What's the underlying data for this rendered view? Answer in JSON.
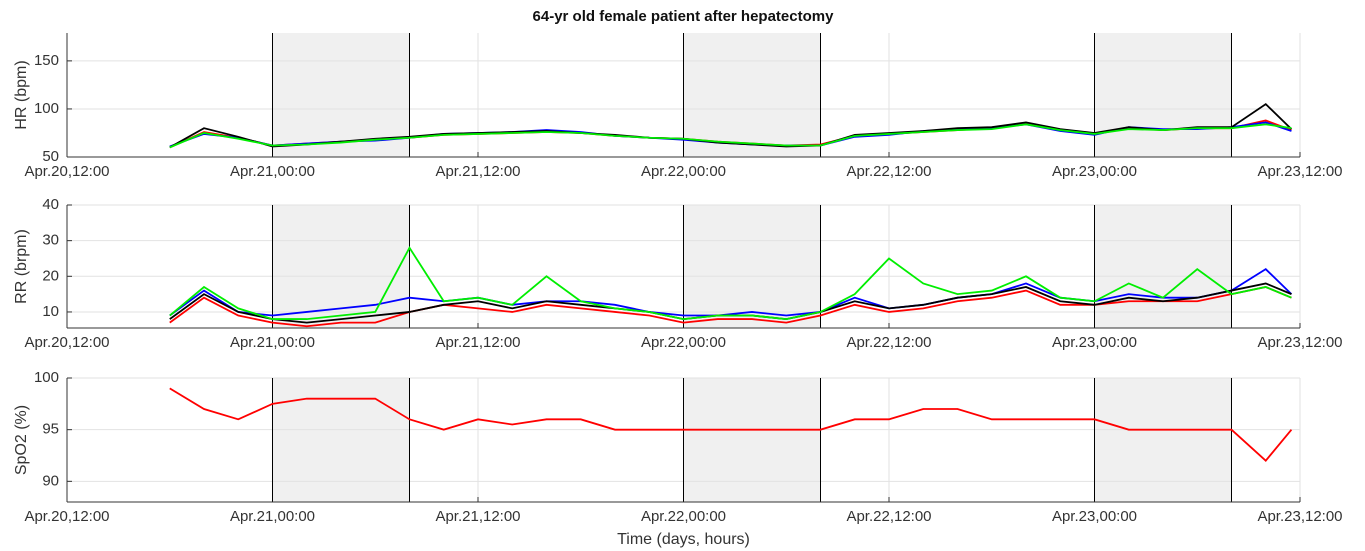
{
  "chart_data": [
    {
      "type": "line",
      "title": "64-yr old female patient after hepatectomy",
      "ylabel": "HR (bpm)",
      "xlim": [
        0,
        72
      ],
      "xticks": [
        {
          "value": 0,
          "label": "Apr.20,12:00"
        },
        {
          "value": 12,
          "label": "Apr.21,00:00"
        },
        {
          "value": 24,
          "label": "Apr.21,12:00"
        },
        {
          "value": 36,
          "label": "Apr.22,00:00"
        },
        {
          "value": 48,
          "label": "Apr.22,12:00"
        },
        {
          "value": 60,
          "label": "Apr.23,00:00"
        },
        {
          "value": 72,
          "label": "Apr.23,12:00"
        }
      ],
      "ylim": [
        50,
        179
      ],
      "yticks": [
        50,
        100,
        150
      ],
      "grid": true,
      "shaded_spans": [
        [
          12,
          20
        ],
        [
          36,
          44
        ],
        [
          60,
          68
        ]
      ],
      "x": [
        6,
        8,
        10,
        12,
        14,
        16,
        18,
        20,
        22,
        24,
        26,
        28,
        30,
        32,
        34,
        36,
        38,
        40,
        42,
        44,
        46,
        48,
        50,
        52,
        54,
        56,
        58,
        60,
        62,
        64,
        66,
        68,
        70,
        71.5
      ],
      "series": [
        {
          "color": "#ff0000",
          "values": [
            60,
            76,
            70,
            62,
            64,
            66,
            68,
            70,
            73,
            74,
            75,
            76,
            75,
            72,
            70,
            69,
            66,
            64,
            62,
            63,
            72,
            74,
            76,
            78,
            80,
            85,
            78,
            74,
            80,
            78,
            80,
            80,
            88,
            78
          ]
        },
        {
          "color": "#0000ff",
          "values": [
            61,
            74,
            70,
            62,
            64,
            66,
            67,
            70,
            74,
            75,
            76,
            78,
            76,
            72,
            70,
            68,
            65,
            63,
            62,
            62,
            71,
            73,
            77,
            79,
            80,
            84,
            77,
            73,
            81,
            79,
            79,
            81,
            86,
            77
          ]
        },
        {
          "color": "#000000",
          "values": [
            60,
            80,
            71,
            61,
            63,
            66,
            69,
            71,
            74,
            75,
            76,
            77,
            75,
            73,
            70,
            69,
            65,
            63,
            61,
            62,
            73,
            75,
            77,
            80,
            81,
            86,
            79,
            75,
            81,
            78,
            81,
            81,
            105,
            79
          ]
        },
        {
          "color": "#00ee00",
          "values": [
            60,
            75,
            69,
            62,
            63,
            65,
            68,
            70,
            73,
            74,
            75,
            76,
            75,
            72,
            70,
            69,
            66,
            64,
            62,
            62,
            72,
            74,
            76,
            78,
            79,
            84,
            78,
            74,
            79,
            78,
            80,
            80,
            84,
            80
          ]
        }
      ]
    },
    {
      "type": "line",
      "ylabel": "RR (brpm)",
      "xlim": [
        0,
        72
      ],
      "xticks": [
        {
          "value": 0,
          "label": "Apr.20,12:00"
        },
        {
          "value": 12,
          "label": "Apr.21,00:00"
        },
        {
          "value": 24,
          "label": "Apr.21,12:00"
        },
        {
          "value": 36,
          "label": "Apr.22,00:00"
        },
        {
          "value": 48,
          "label": "Apr.22,12:00"
        },
        {
          "value": 60,
          "label": "Apr.23,00:00"
        },
        {
          "value": 72,
          "label": "Apr.23,12:00"
        }
      ],
      "ylim": [
        5.5,
        40
      ],
      "yticks": [
        10,
        20,
        30,
        40
      ],
      "grid": true,
      "shaded_spans": [
        [
          12,
          20
        ],
        [
          36,
          44
        ],
        [
          60,
          68
        ]
      ],
      "x": [
        6,
        8,
        10,
        12,
        14,
        16,
        18,
        20,
        22,
        24,
        26,
        28,
        30,
        32,
        34,
        36,
        38,
        40,
        42,
        44,
        46,
        48,
        50,
        52,
        54,
        56,
        58,
        60,
        62,
        64,
        66,
        68,
        70,
        71.5
      ],
      "series": [
        {
          "color": "#ff0000",
          "values": [
            7,
            14,
            9,
            7,
            6,
            7,
            7,
            10,
            12,
            11,
            10,
            12,
            11,
            10,
            9,
            7,
            8,
            8,
            7,
            9,
            12,
            10,
            11,
            13,
            14,
            16,
            12,
            12,
            13,
            13,
            13,
            15,
            17,
            14
          ]
        },
        {
          "color": "#0000ff",
          "values": [
            9,
            16,
            10,
            9,
            10,
            11,
            12,
            14,
            13,
            14,
            12,
            13,
            13,
            12,
            10,
            9,
            9,
            10,
            9,
            10,
            14,
            11,
            12,
            14,
            15,
            18,
            14,
            13,
            15,
            14,
            14,
            16,
            22,
            15
          ]
        },
        {
          "color": "#000000",
          "values": [
            8,
            15,
            10,
            8,
            7,
            8,
            9,
            10,
            12,
            13,
            11,
            13,
            12,
            11,
            10,
            8,
            9,
            9,
            8,
            10,
            13,
            11,
            12,
            14,
            15,
            17,
            13,
            12,
            14,
            13,
            14,
            16,
            18,
            15
          ]
        },
        {
          "color": "#00ee00",
          "values": [
            9,
            17,
            11,
            8,
            8,
            9,
            10,
            28,
            13,
            14,
            12,
            20,
            13,
            11,
            10,
            8,
            9,
            9,
            8,
            10,
            15,
            25,
            18,
            15,
            16,
            20,
            14,
            13,
            18,
            14,
            22,
            15,
            17,
            14
          ]
        }
      ]
    },
    {
      "type": "line",
      "ylabel": "SpO2 (%)",
      "xlabel": "Time (days, hours)",
      "xlim": [
        0,
        72
      ],
      "xticks": [
        {
          "value": 0,
          "label": "Apr.20,12:00"
        },
        {
          "value": 12,
          "label": "Apr.21,00:00"
        },
        {
          "value": 24,
          "label": "Apr.21,12:00"
        },
        {
          "value": 36,
          "label": "Apr.22,00:00"
        },
        {
          "value": 48,
          "label": "Apr.22,12:00"
        },
        {
          "value": 60,
          "label": "Apr.23,00:00"
        },
        {
          "value": 72,
          "label": "Apr.23,12:00"
        }
      ],
      "ylim": [
        88,
        100
      ],
      "yticks": [
        90,
        95,
        100
      ],
      "grid": true,
      "shaded_spans": [
        [
          12,
          20
        ],
        [
          36,
          44
        ],
        [
          60,
          68
        ]
      ],
      "x": [
        6,
        8,
        10,
        12,
        14,
        16,
        18,
        20,
        22,
        24,
        26,
        28,
        30,
        32,
        34,
        36,
        38,
        40,
        42,
        44,
        46,
        48,
        50,
        52,
        54,
        56,
        58,
        60,
        62,
        64,
        66,
        68,
        70,
        71.5
      ],
      "series": [
        {
          "color": "#ff0000",
          "values": [
            99,
            97,
            96,
            97.5,
            98,
            98,
            98,
            96,
            95,
            96,
            95.5,
            96,
            96,
            95,
            95,
            95,
            95,
            95,
            95,
            95,
            96,
            96,
            97,
            97,
            96,
            96,
            96,
            96,
            95,
            95,
            95,
            95,
            92,
            95
          ]
        }
      ]
    }
  ]
}
